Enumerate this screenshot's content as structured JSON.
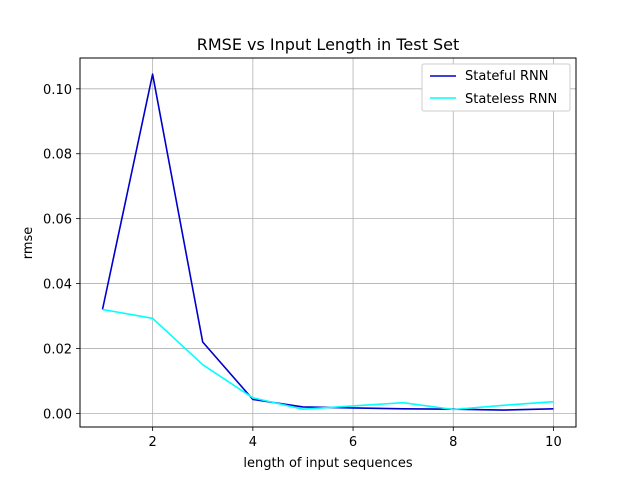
{
  "chart_data": {
    "type": "line",
    "title": "RMSE vs Input Length in Test Set",
    "xlabel": "length of input sequences",
    "ylabel": "rmse",
    "xlim": [
      0.55,
      10.45
    ],
    "ylim": [
      -0.0042,
      0.1095
    ],
    "x_ticks": [
      2,
      4,
      6,
      8,
      10
    ],
    "y_ticks": [
      0.0,
      0.02,
      0.04,
      0.06,
      0.08,
      0.1
    ],
    "y_tick_labels": [
      "0.00",
      "0.02",
      "0.04",
      "0.06",
      "0.08",
      "0.10"
    ],
    "grid": true,
    "legend_position": "top-right",
    "x": [
      1,
      2,
      3,
      4,
      5,
      6,
      7,
      8,
      9,
      10
    ],
    "series": [
      {
        "name": "Stateful RNN",
        "color": "#0000cd",
        "values": [
          0.032,
          0.1045,
          0.022,
          0.0043,
          0.002,
          0.0017,
          0.0014,
          0.0013,
          0.001,
          0.0014
        ]
      },
      {
        "name": "Stateless RNN",
        "color": "#00ffff",
        "values": [
          0.032,
          0.0293,
          0.015,
          0.0048,
          0.0013,
          0.0023,
          0.0033,
          0.0012,
          0.0025,
          0.0036
        ]
      }
    ]
  }
}
